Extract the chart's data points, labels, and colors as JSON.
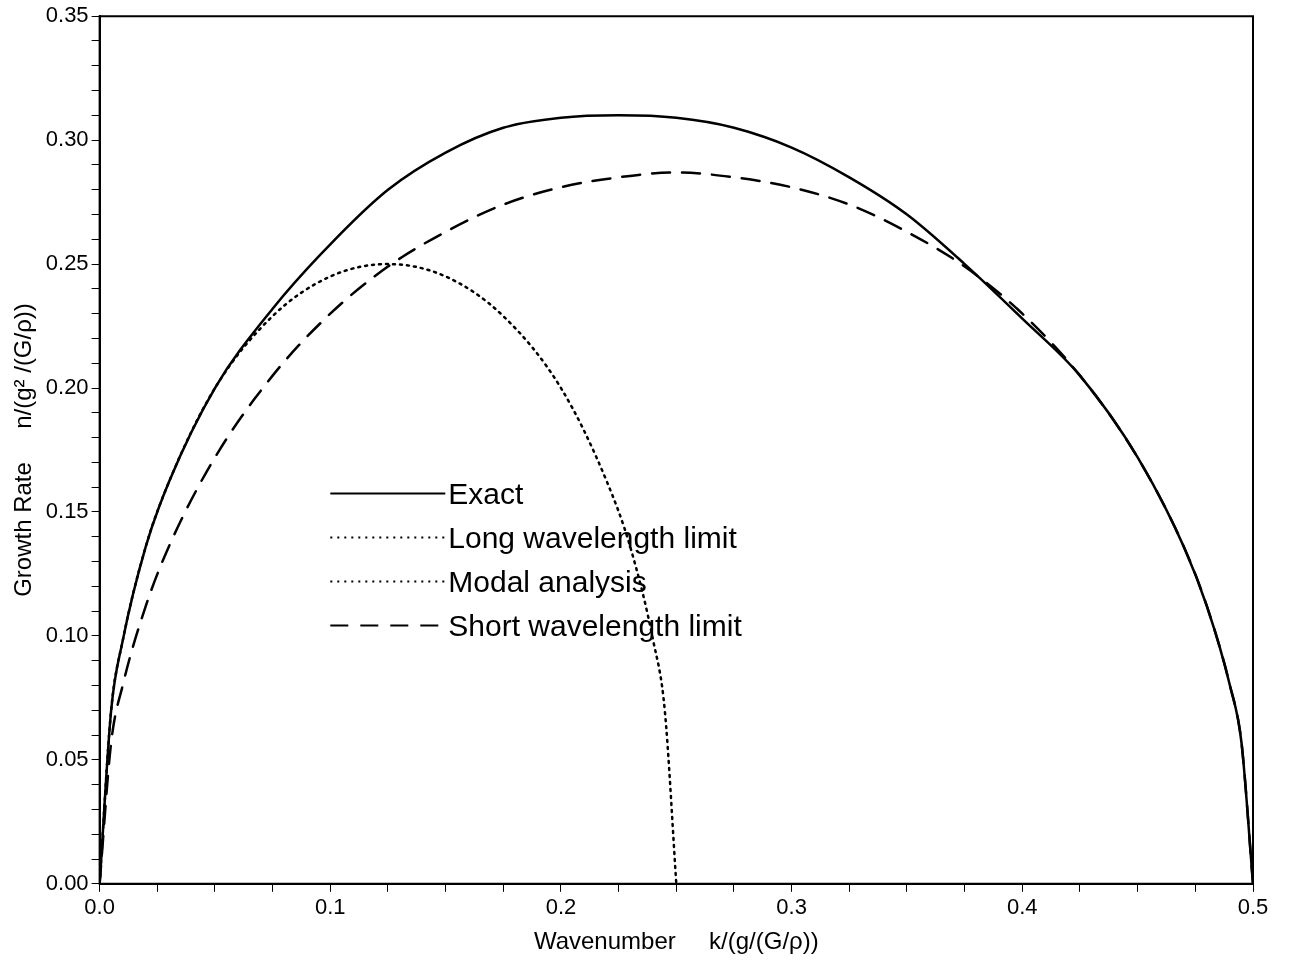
{
  "chart_data": {
    "type": "line",
    "xlabel": "Wavenumber     k/(g/(G/ρ))",
    "ylabel": "Growth Rate     n/(g² /(G/ρ))",
    "xlim": [
      0,
      0.5
    ],
    "ylim": [
      0,
      0.35
    ],
    "xticks": [
      {
        "value": 0,
        "label": "0.0"
      },
      {
        "value": 0.025,
        "label": null
      },
      {
        "value": 0.05,
        "label": null
      },
      {
        "value": 0.075,
        "label": null
      },
      0.1,
      {
        "value": 0.125,
        "label": null
      },
      {
        "value": 0.15,
        "label": null
      },
      {
        "value": 0.175,
        "label": null
      },
      0.2,
      {
        "value": 0.225,
        "label": null
      },
      {
        "value": 0.25,
        "label": null
      },
      {
        "value": 0.275,
        "label": null
      },
      0.3,
      {
        "value": 0.325,
        "label": null
      },
      {
        "value": 0.35,
        "label": null
      },
      {
        "value": 0.375,
        "label": null
      },
      0.4,
      {
        "value": 0.425,
        "label": null
      },
      {
        "value": 0.45,
        "label": null
      },
      {
        "value": 0.475,
        "label": null
      },
      0.5
    ],
    "yticks": [
      {
        "value": 0,
        "label": "0.00"
      },
      {
        "value": 0.01,
        "label": null
      },
      {
        "value": 0.02,
        "label": null
      },
      {
        "value": 0.03,
        "label": null
      },
      {
        "value": 0.04,
        "label": null
      },
      0.05,
      {
        "value": 0.06,
        "label": null
      },
      {
        "value": 0.07,
        "label": null
      },
      {
        "value": 0.08,
        "label": null
      },
      {
        "value": 0.09,
        "label": null
      },
      {
        "value": 0.1,
        "label": "0.10"
      },
      {
        "value": 0.11,
        "label": null
      },
      {
        "value": 0.12,
        "label": null
      },
      {
        "value": 0.13,
        "label": null
      },
      {
        "value": 0.14,
        "label": null
      },
      0.15,
      {
        "value": 0.16,
        "label": null
      },
      {
        "value": 0.17,
        "label": null
      },
      {
        "value": 0.18,
        "label": null
      },
      {
        "value": 0.19,
        "label": null
      },
      {
        "value": 0.2,
        "label": "0.20"
      },
      {
        "value": 0.21,
        "label": null
      },
      {
        "value": 0.22,
        "label": null
      },
      {
        "value": 0.23,
        "label": null
      },
      {
        "value": 0.24,
        "label": null
      },
      0.25,
      {
        "value": 0.26,
        "label": null
      },
      {
        "value": 0.27,
        "label": null
      },
      {
        "value": 0.28,
        "label": null
      },
      {
        "value": 0.29,
        "label": null
      },
      {
        "value": 0.3,
        "label": "0.30"
      },
      {
        "value": 0.31,
        "label": null
      },
      {
        "value": 0.32,
        "label": null
      },
      {
        "value": 0.33,
        "label": null
      },
      {
        "value": 0.34,
        "label": null
      },
      0.35
    ],
    "grid": false,
    "legend": "center",
    "marker": "none",
    "series": [
      {
        "name": "Exact",
        "color": "#000000",
        "line_style": "solid",
        "x": [
          0,
          0.005,
          0.01,
          0.02,
          0.03,
          0.05,
          0.075,
          0.1,
          0.125,
          0.15,
          0.175,
          0.2,
          0.225,
          0.25,
          0.275,
          0.3,
          0.325,
          0.35,
          0.375,
          0.4,
          0.425,
          0.45,
          0.47,
          0.48,
          0.49,
          0.495,
          0.5
        ],
        "values": [
          0,
          0.07,
          0.098,
          0.136,
          0.162,
          0.2,
          0.232,
          0.258,
          0.28,
          0.295,
          0.305,
          0.309,
          0.31,
          0.309,
          0.305,
          0.297,
          0.285,
          0.27,
          0.25,
          0.228,
          0.205,
          0.172,
          0.136,
          0.112,
          0.08,
          0.057,
          0
        ]
      },
      {
        "name": "Long wavelength limit",
        "color": "#000000",
        "line_style": "dotted",
        "x": [
          0,
          0.005,
          0.01,
          0.02,
          0.03,
          0.05,
          0.075,
          0.1,
          0.125,
          0.15,
          0.175,
          0.2,
          0.22,
          0.23,
          0.24,
          0.245,
          0.25
        ],
        "values": [
          0,
          0.07,
          0.098,
          0.136,
          0.162,
          0.2,
          0.229,
          0.245,
          0.25,
          0.245,
          0.229,
          0.2,
          0.162,
          0.136,
          0.098,
          0.07,
          0
        ]
      },
      {
        "name": "Modal analysis",
        "color": "#000000",
        "line_style": "dotted"
      },
      {
        "name": "Short wavelength limit",
        "color": "#000000",
        "line_style": "dashed",
        "x": [
          0,
          0.005,
          0.01,
          0.02,
          0.03,
          0.05,
          0.075,
          0.1,
          0.125,
          0.15,
          0.175,
          0.2,
          0.225,
          0.25,
          0.275,
          0.3,
          0.325,
          0.35,
          0.375,
          0.4,
          0.425,
          0.45,
          0.47,
          0.48,
          0.49,
          0.495,
          0.5
        ],
        "values": [
          0,
          0.057,
          0.08,
          0.112,
          0.136,
          0.172,
          0.205,
          0.23,
          0.249,
          0.263,
          0.274,
          0.281,
          0.285,
          0.287,
          0.285,
          0.281,
          0.274,
          0.263,
          0.249,
          0.23,
          0.205,
          0.172,
          0.136,
          0.112,
          0.08,
          0.057,
          0
        ]
      }
    ]
  }
}
